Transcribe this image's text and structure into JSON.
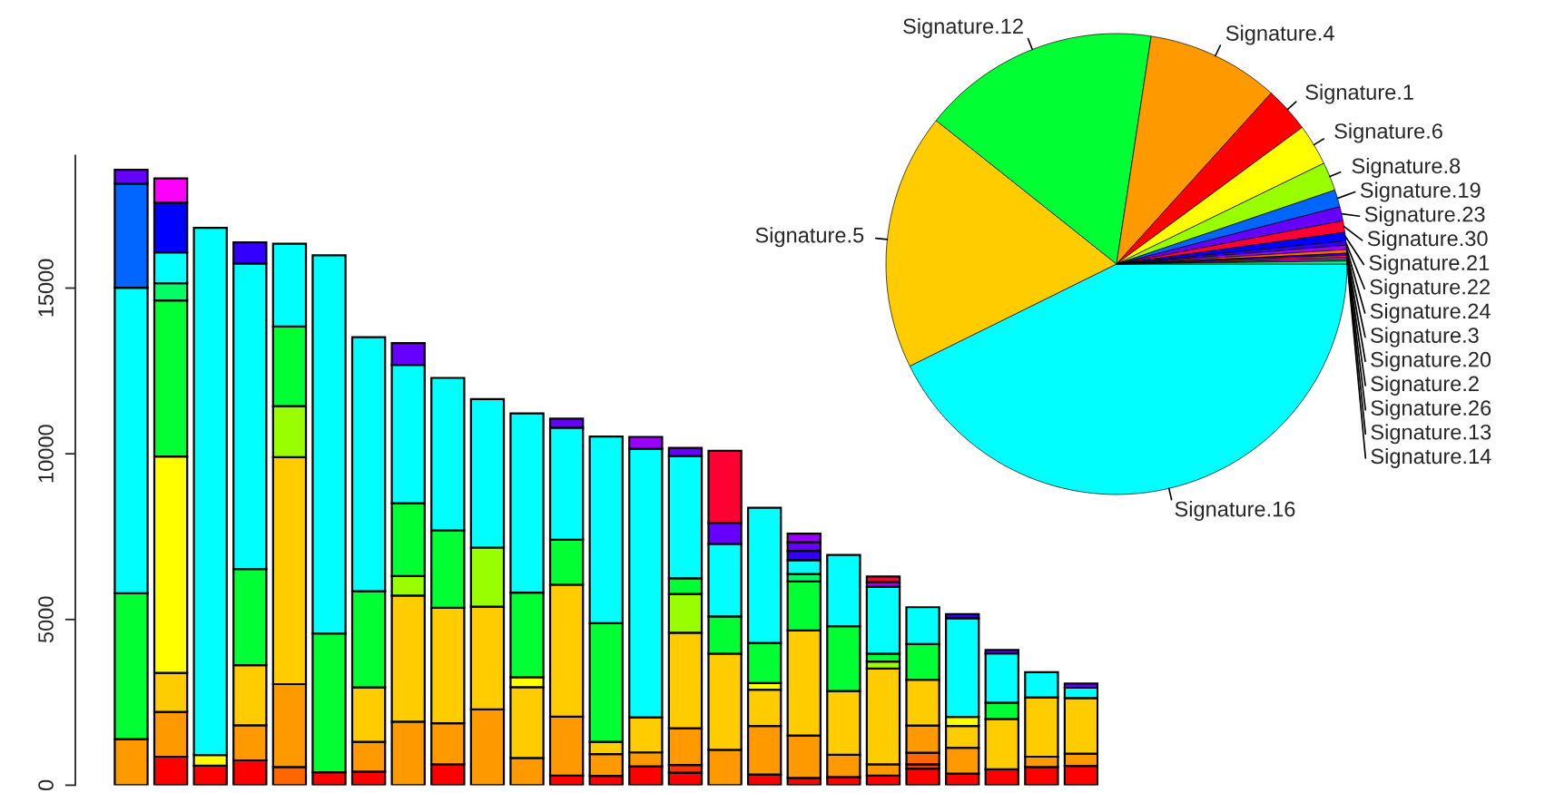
{
  "chart_data": [
    {
      "type": "bar",
      "stacked": true,
      "categories": [
        null,
        null,
        null,
        null,
        null,
        null,
        null,
        null,
        null,
        null,
        null,
        null,
        null,
        null,
        null,
        null,
        null,
        null,
        null,
        null,
        null,
        null,
        null,
        null,
        null
      ],
      "ylim": [
        0,
        19000
      ],
      "yticks": [
        0,
        5000,
        10000,
        15000
      ],
      "series": [
        {
          "color": "#ff0000",
          "values": [
            null,
            860,
            590,
            750,
            null,
            390,
            410,
            null,
            630,
            null,
            null,
            290,
            280,
            570,
            380,
            null,
            320,
            220,
            250,
            290,
            500,
            350,
            480,
            550,
            580
          ]
        },
        {
          "color": "#ff3300",
          "values": [
            null,
            null,
            null,
            null,
            null,
            null,
            null,
            null,
            null,
            null,
            null,
            null,
            null,
            null,
            230,
            null,
            null,
            null,
            null,
            null,
            130,
            null,
            null,
            null,
            null
          ]
        },
        {
          "color": "#ff6600",
          "values": [
            null,
            null,
            null,
            null,
            550,
            null,
            null,
            null,
            null,
            null,
            null,
            null,
            null,
            null,
            null,
            null,
            null,
            null,
            null,
            null,
            350,
            null,
            null,
            null,
            null
          ]
        },
        {
          "color": "#ff9900",
          "values": [
            1390,
            1350,
            null,
            1060,
            2500,
            null,
            900,
            1920,
            1240,
            2290,
            820,
            1780,
            660,
            420,
            1110,
            1070,
            1470,
            1280,
            670,
            340,
            820,
            780,
            null,
            310,
            370
          ]
        },
        {
          "color": "#ffcc00",
          "values": [
            null,
            1180,
            null,
            1810,
            6850,
            null,
            1640,
            3800,
            3480,
            3100,
            2140,
            3980,
            370,
            1060,
            2880,
            2900,
            1090,
            3170,
            1920,
            2890,
            1380,
            660,
            1520,
            1790,
            1680
          ]
        },
        {
          "color": "#ffff00",
          "values": [
            null,
            6530,
            320,
            null,
            null,
            null,
            null,
            null,
            null,
            null,
            300,
            null,
            null,
            null,
            null,
            null,
            200,
            null,
            null,
            null,
            null,
            270,
            null,
            null,
            null
          ]
        },
        {
          "color": "#99ff00",
          "values": [
            null,
            null,
            null,
            null,
            1540,
            null,
            null,
            590,
            null,
            1780,
            null,
            null,
            null,
            null,
            1170,
            null,
            null,
            null,
            null,
            210,
            null,
            null,
            null,
            null,
            null
          ]
        },
        {
          "color": "#00ff33",
          "values": [
            4400,
            4710,
            null,
            2900,
            2400,
            4190,
            2900,
            2200,
            2340,
            null,
            2550,
            1360,
            3580,
            null,
            470,
            1120,
            1210,
            1480,
            1960,
            240,
            1080,
            null,
            490,
            null,
            null
          ]
        },
        {
          "color": "#00ff66",
          "values": [
            null,
            520,
            null,
            null,
            null,
            null,
            null,
            null,
            null,
            null,
            null,
            null,
            null,
            null,
            null,
            null,
            null,
            220,
            null,
            null,
            null,
            null,
            null,
            null,
            null
          ]
        },
        {
          "color": "#00ffff",
          "values": [
            9220,
            930,
            15910,
            9220,
            2500,
            11410,
            7670,
            4170,
            4600,
            4480,
            5410,
            3380,
            5630,
            8100,
            3690,
            2190,
            4080,
            420,
            2150,
            2010,
            1110,
            2980,
            1490,
            760,
            310
          ]
        },
        {
          "color": "#0066ff",
          "values": [
            3140,
            null,
            null,
            null,
            null,
            null,
            null,
            null,
            null,
            null,
            null,
            null,
            null,
            null,
            null,
            null,
            null,
            null,
            null,
            null,
            null,
            null,
            null,
            null,
            null
          ]
        },
        {
          "color": "#0000ff",
          "values": [
            null,
            1500,
            null,
            null,
            null,
            null,
            null,
            null,
            null,
            null,
            null,
            null,
            null,
            null,
            null,
            null,
            null,
            null,
            null,
            null,
            null,
            null,
            null,
            null,
            null
          ]
        },
        {
          "color": "#3300ff",
          "values": [
            null,
            null,
            null,
            640,
            null,
            null,
            null,
            null,
            null,
            null,
            null,
            null,
            null,
            null,
            null,
            null,
            null,
            280,
            null,
            null,
            null,
            120,
            null,
            null,
            null
          ]
        },
        {
          "color": "#6600ff",
          "values": [
            420,
            null,
            null,
            null,
            null,
            null,
            null,
            660,
            null,
            null,
            null,
            270,
            null,
            null,
            250,
            640,
            null,
            260,
            null,
            null,
            null,
            null,
            100,
            null,
            130
          ]
        },
        {
          "color": "#9900ff",
          "values": [
            null,
            null,
            null,
            null,
            null,
            null,
            null,
            null,
            null,
            null,
            null,
            null,
            null,
            360,
            null,
            null,
            null,
            260,
            null,
            150,
            null,
            null,
            null,
            null,
            null
          ]
        },
        {
          "color": "#ff00ff",
          "values": [
            null,
            730,
            null,
            null,
            null,
            null,
            null,
            null,
            null,
            null,
            null,
            null,
            null,
            null,
            null,
            null,
            null,
            null,
            null,
            null,
            null,
            null,
            null,
            null,
            null
          ]
        },
        {
          "color": "#ff0033",
          "values": [
            null,
            null,
            null,
            null,
            null,
            null,
            null,
            null,
            null,
            null,
            null,
            null,
            null,
            null,
            null,
            2170,
            null,
            null,
            null,
            170,
            null,
            null,
            null,
            null,
            null
          ]
        }
      ]
    },
    {
      "type": "pie",
      "categories": [
        "Signature.16",
        "Signature.5",
        "Signature.12",
        "Signature.4",
        "Signature.1",
        "Signature.6",
        "Signature.8",
        "Signature.19",
        "Signature.23",
        "Signature.30",
        "Signature.21",
        "Signature.22",
        "Signature.24",
        "Signature.3",
        "Signature.20",
        "Signature.2",
        "Signature.26",
        "Signature.13",
        "Signature.14"
      ],
      "values": [
        42.7,
        18.0,
        16.7,
        9.3,
        3.2,
        2.9,
        2.0,
        1.2,
        1.0,
        0.8,
        0.6,
        0.3,
        0.3,
        0.25,
        0.15,
        0.15,
        0.15,
        0.1,
        0.2
      ],
      "colors": [
        "#00ffff",
        "#ffcc00",
        "#00ff33",
        "#ff9900",
        "#ff0000",
        "#ffff00",
        "#99ff00",
        "#0066ff",
        "#6600ff",
        "#ff0033",
        "#0000ff",
        "#3300ff",
        "#9900ff",
        "#ff6600",
        "#1a00ff",
        "#ff3300",
        "#ff00ff",
        "#00ff66",
        "#00ff99"
      ]
    }
  ]
}
